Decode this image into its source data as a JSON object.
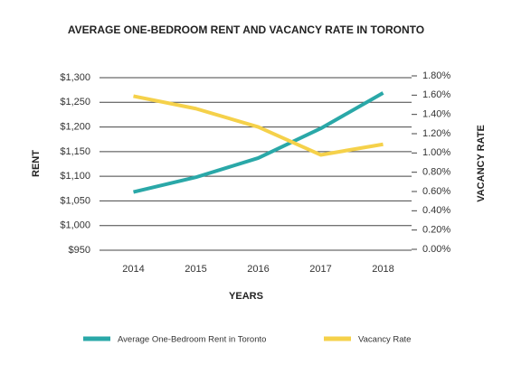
{
  "chart_data": {
    "type": "line",
    "title": "AVERAGE ONE-BEDROOM RENT AND VACANCY RATE IN TORONTO",
    "x_label": "YEARS",
    "y_label": "RENT",
    "y2_label": "VACANCY RATE",
    "categories": [
      "2014",
      "2015",
      "2016",
      "2017",
      "2018"
    ],
    "series": [
      {
        "name": "Average One-Bedroom Rent in Toronto",
        "color": "#2aa8a8",
        "values": [
          1068,
          1098,
          1137,
          1197,
          1269
        ]
      },
      {
        "name": "Vacancy Rate",
        "color": "#f5d14a",
        "axis": "y2",
        "values": [
          1.59,
          1.46,
          1.27,
          0.98,
          1.09
        ]
      }
    ],
    "ylim": [
      950,
      1300
    ],
    "yticks": [
      {
        "value": 950,
        "label": "$950"
      },
      {
        "value": 1000,
        "label": "$1,000"
      },
      {
        "value": 1050,
        "label": "$1,050"
      },
      {
        "value": 1100,
        "label": "$1,100"
      },
      {
        "value": 1150,
        "label": "$1,150"
      },
      {
        "value": 1200,
        "label": "$1,200"
      },
      {
        "value": 1250,
        "label": "$1,250"
      },
      {
        "value": 1300,
        "label": "$1,300"
      }
    ],
    "y2lim": [
      0,
      1.8
    ],
    "y2ticks": [
      {
        "value": 0,
        "label": "0.00%"
      },
      {
        "value": 0.2,
        "label": "0.20%"
      },
      {
        "value": 0.4,
        "label": "0.40%"
      },
      {
        "value": 0.6,
        "label": "0.60%"
      },
      {
        "value": 0.8,
        "label": "0.80%"
      },
      {
        "value": 1.0,
        "label": "1.00%"
      },
      {
        "value": 1.2,
        "label": "1.20%"
      },
      {
        "value": 1.4,
        "label": "1.40%"
      },
      {
        "value": 1.6,
        "label": "1.60%"
      },
      {
        "value": 1.8,
        "label": "1.80%"
      }
    ],
    "grid": true
  }
}
